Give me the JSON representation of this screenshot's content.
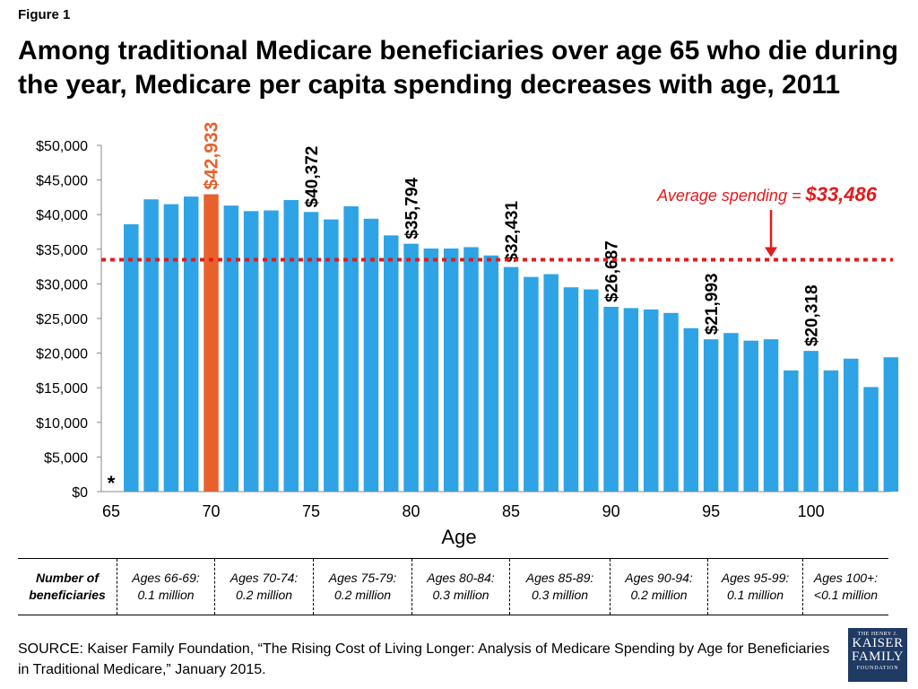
{
  "figure_label": "Figure 1",
  "title": "Among traditional Medicare beneficiaries over age 65 who die during the year, Medicare per capita spending decreases with age, 2011",
  "colors": {
    "bar": "#2ea3e6",
    "highlight_bar": "#e8612c",
    "average_line": "#e41a1c",
    "axis": "#888888"
  },
  "chart_data": {
    "type": "bar",
    "xlabel": "Age",
    "ylabel": "",
    "x_ticks": [
      65,
      70,
      75,
      80,
      85,
      90,
      95,
      100
    ],
    "y_ticks": [
      "$0",
      "$5,000",
      "$10,000",
      "$15,000",
      "$20,000",
      "$25,000",
      "$30,000",
      "$35,000",
      "$40,000",
      "$45,000",
      "$50,000"
    ],
    "ylim": [
      0,
      50000
    ],
    "xlim": [
      65,
      104
    ],
    "grid": false,
    "missing_marker": {
      "age": 65,
      "label": "*"
    },
    "ages": [
      66,
      67,
      68,
      69,
      70,
      71,
      72,
      73,
      74,
      75,
      76,
      77,
      78,
      79,
      80,
      81,
      82,
      83,
      84,
      85,
      86,
      87,
      88,
      89,
      90,
      91,
      92,
      93,
      94,
      95,
      96,
      97,
      98,
      99,
      100,
      101,
      102,
      103,
      104
    ],
    "values": [
      38600,
      42200,
      41500,
      42600,
      42933,
      41300,
      40500,
      40600,
      42100,
      40372,
      39300,
      41200,
      39400,
      37000,
      35794,
      35100,
      35100,
      35300,
      34100,
      32431,
      31000,
      31400,
      29500,
      29200,
      26687,
      26500,
      26300,
      25800,
      23600,
      21993,
      22900,
      21800,
      22000,
      17500,
      20318,
      17500,
      19200,
      15100,
      19400
    ],
    "highlight_age": 70,
    "data_labels": [
      {
        "age": 70,
        "text": "$42,933",
        "highlight": true
      },
      {
        "age": 75,
        "text": "$40,372",
        "highlight": false
      },
      {
        "age": 80,
        "text": "$35,794",
        "highlight": false
      },
      {
        "age": 85,
        "text": "$32,431",
        "highlight": false
      },
      {
        "age": 90,
        "text": "$26,687",
        "highlight": false
      },
      {
        "age": 95,
        "text": "$21,993",
        "highlight": false
      },
      {
        "age": 100,
        "text": "$20,318",
        "highlight": false
      }
    ],
    "average": {
      "value": 33486,
      "label_prefix": "Average spending = ",
      "label_value": "$33,486",
      "arrow_age": 98
    }
  },
  "table": {
    "header": [
      "Number of",
      "beneficiaries"
    ],
    "cells": [
      [
        "Ages 66-69:",
        "0.1 million"
      ],
      [
        "Ages 70-74:",
        "0.2 million"
      ],
      [
        "Ages 75-79:",
        "0.2 million"
      ],
      [
        "Ages 80-84:",
        "0.3 million"
      ],
      [
        "Ages 85-89:",
        "0.3 million"
      ],
      [
        "Ages 90-94:",
        "0.2 million"
      ],
      [
        "Ages 95-99:",
        "0.1 million"
      ],
      [
        "Ages 100+:",
        "<0.1 million"
      ]
    ]
  },
  "source": "SOURCE: Kaiser Family Foundation, “The Rising Cost of Living Longer: Analysis of Medicare Spending by Age for Beneficiaries in Traditional Medicare,” January 2015.",
  "logo": {
    "line1": "THE HENRY J.",
    "line2": "KAISER",
    "line3": "FAMILY",
    "line4": "FOUNDATION"
  }
}
